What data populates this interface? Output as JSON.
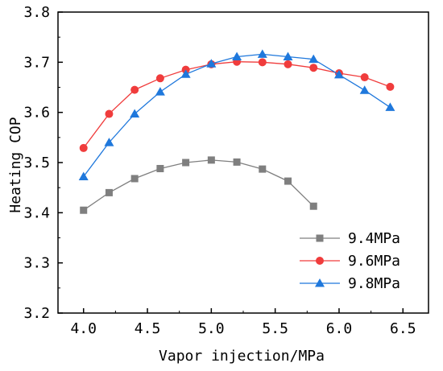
{
  "chart_data": {
    "type": "line",
    "xlabel": "Vapor injection/MPa",
    "ylabel": "Heating COP",
    "xlim": [
      3.8,
      6.7
    ],
    "ylim": [
      3.2,
      3.8
    ],
    "xticks": [
      "4.0",
      "4.5",
      "5.0",
      "5.5",
      "6.0",
      "6.5"
    ],
    "yticks": [
      "3.2",
      "3.3",
      "3.4",
      "3.5",
      "3.6",
      "3.7",
      "3.8"
    ],
    "grid": false,
    "legend_position": "bottom-right",
    "series": [
      {
        "name": "9.4MPa",
        "color": "#7f7f7f",
        "marker": "square",
        "x": [
          4.0,
          4.2,
          4.4,
          4.6,
          4.8,
          5.0,
          5.2,
          5.4,
          5.6,
          5.8
        ],
        "y": [
          3.405,
          3.44,
          3.468,
          3.488,
          3.5,
          3.505,
          3.501,
          3.487,
          3.463,
          3.413
        ]
      },
      {
        "name": "9.6MPa",
        "color": "#f03c3c",
        "marker": "circle",
        "x": [
          4.0,
          4.2,
          4.4,
          4.6,
          4.8,
          5.0,
          5.2,
          5.4,
          5.6,
          5.8,
          6.0,
          6.2,
          6.4
        ],
        "y": [
          3.529,
          3.597,
          3.645,
          3.668,
          3.685,
          3.696,
          3.701,
          3.7,
          3.696,
          3.689,
          3.678,
          3.67,
          3.651
        ]
      },
      {
        "name": "9.8MPa",
        "color": "#1f78dc",
        "marker": "triangle",
        "x": [
          4.0,
          4.2,
          4.4,
          4.6,
          4.8,
          5.0,
          5.2,
          5.4,
          5.6,
          5.8,
          6.0,
          6.2,
          6.4
        ],
        "y": [
          3.472,
          3.54,
          3.597,
          3.641,
          3.676,
          3.697,
          3.711,
          3.716,
          3.711,
          3.706,
          3.675,
          3.644,
          3.61
        ]
      }
    ]
  }
}
